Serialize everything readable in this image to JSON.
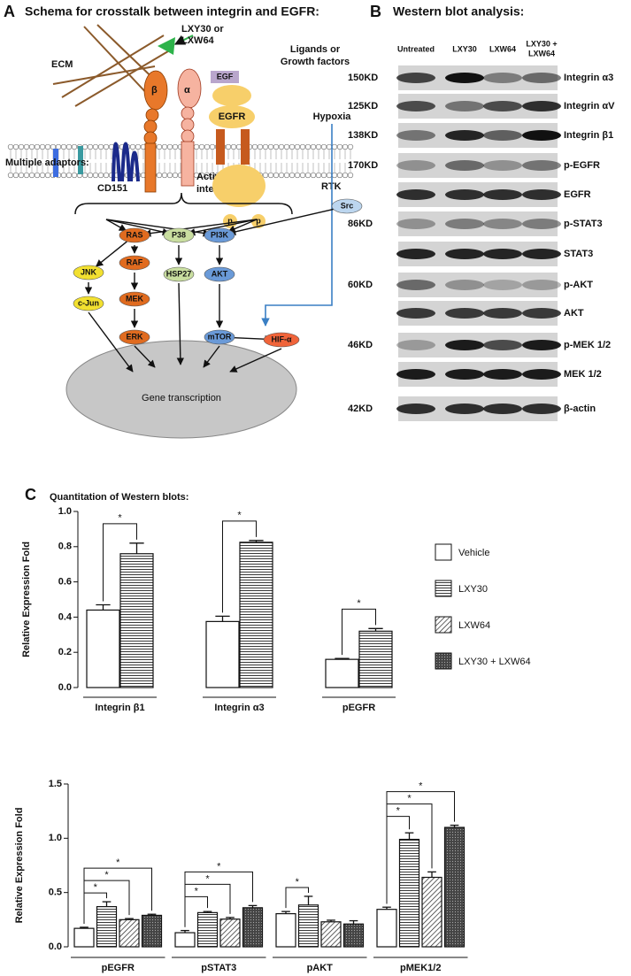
{
  "schema": {
    "letter": "A",
    "title": "Schema for crosstalk between integrin and EGFR:",
    "ecm": "ECM",
    "ligand_drug": [
      "LXY30 or",
      "LXW64"
    ],
    "ligands": [
      "Ligands or",
      "Growth factors"
    ],
    "egf": "EGF",
    "egfr": "EGFR",
    "beta": "β",
    "alpha": "α",
    "hypoxia": "Hypoxia",
    "adaptors": "Multiple adaptors:",
    "cd151": "CD151",
    "active_integrin": [
      "Active",
      "integrin"
    ],
    "rtk": "RTK",
    "phospho": [
      "p",
      "p"
    ],
    "nodes": [
      "Src",
      "RAS",
      "P38",
      "PI3K",
      "JNK",
      "RAF",
      "HSP27",
      "AKT",
      "MEK",
      "c-Jun",
      "ERK",
      "mTOR",
      "HIF-α"
    ],
    "nucleus": "Gene transcription"
  },
  "blot": {
    "letter": "B",
    "title": "Western blot analysis:",
    "columns": [
      "Untreated",
      "LXY30",
      "LXW64",
      [
        "LXY30 +",
        "LXW64"
      ]
    ],
    "rows": [
      {
        "kd": "150KD",
        "protein": "Integrin α3"
      },
      {
        "kd": "125KD",
        "protein": "Integrin αV"
      },
      {
        "kd": "138KD",
        "protein": "Integrin β1"
      },
      {
        "kd": "170KD",
        "protein": "p-EGFR"
      },
      {
        "kd": null,
        "protein": "EGFR"
      },
      {
        "kd": "86KD",
        "protein": "p-STAT3"
      },
      {
        "kd": null,
        "protein": "STAT3"
      },
      {
        "kd": "60KD",
        "protein": "p-AKT"
      },
      {
        "kd": null,
        "protein": "AKT"
      },
      {
        "kd": "46KD",
        "protein": "p-MEK 1/2"
      },
      {
        "kd": null,
        "protein": "MEK 1/2"
      },
      {
        "kd": "42KD",
        "protein": "β-actin"
      }
    ]
  },
  "quant": {
    "letter": "C",
    "title": "Quantitation of Western blots:"
  },
  "chart_data": [
    {
      "type": "bar",
      "y_label": "Relative Expression Fold",
      "categories": [
        "Integrin β1",
        "Integrin α3",
        "pEGFR"
      ],
      "series": [
        {
          "name": "Vehicle",
          "pattern": "none",
          "color": "#ffffff",
          "values": [
            0.44,
            0.375,
            0.16
          ],
          "errors": [
            0.03,
            0.03,
            0.005
          ]
        },
        {
          "name": "LXY30",
          "pattern": "horizontal",
          "color": "#ffffff",
          "values": [
            0.76,
            0.825,
            0.32
          ],
          "errors": [
            0.06,
            0.01,
            0.015
          ]
        }
      ],
      "ylim": [
        0,
        1
      ],
      "yticks": [
        {
          "value": 0,
          "label": "0.0"
        },
        0.2,
        0.4,
        0.6,
        0.8,
        {
          "value": 1,
          "label": "1.0"
        }
      ],
      "significance": [
        {
          "label": "*",
          "category": "Integrin β1",
          "compare": [
            "Vehicle",
            "LXY30"
          ]
        },
        {
          "label": "*",
          "category": "Integrin α3",
          "compare": [
            "Vehicle",
            "LXY30"
          ]
        },
        {
          "label": "*",
          "category": "pEGFR",
          "compare": [
            "Vehicle",
            "LXY30"
          ]
        }
      ]
    },
    {
      "type": "bar",
      "y_label": "Relative Expression Fold",
      "legend": true,
      "categories": [
        "pEGFR",
        "pSTAT3",
        "pAKT",
        "pMEK1/2"
      ],
      "series": [
        {
          "name": "Vehicle",
          "pattern": "none",
          "color": "#ffffff",
          "values": [
            0.17,
            0.13,
            0.305,
            0.345
          ],
          "errors": [
            0.01,
            0.02,
            0.02,
            0.02
          ]
        },
        {
          "name": "LXY30",
          "pattern": "horizontal",
          "color": "#ffffff",
          "values": [
            0.37,
            0.315,
            0.385,
            0.99
          ],
          "errors": [
            0.045,
            0.01,
            0.08,
            0.06
          ]
        },
        {
          "name": "LXW64",
          "pattern": "diagonal",
          "color": "#ffffff",
          "values": [
            0.25,
            0.255,
            0.23,
            0.64
          ],
          "errors": [
            0.01,
            0.015,
            0.015,
            0.05
          ]
        },
        {
          "name": "LXY30 + LXW64",
          "pattern": "dots",
          "color": "#444444",
          "values": [
            0.29,
            0.36,
            0.21,
            1.1
          ],
          "errors": [
            0.01,
            0.02,
            0.03,
            0.02
          ]
        }
      ],
      "ylim": [
        0,
        1.5
      ],
      "yticks": [
        {
          "value": 0,
          "label": "0.0"
        },
        0.5,
        {
          "value": 1,
          "label": "1.0"
        },
        1.5
      ],
      "significance": [
        {
          "label": "*",
          "category": "pEGFR",
          "compare": [
            "Vehicle",
            "LXY30"
          ]
        },
        {
          "label": "*",
          "category": "pEGFR",
          "compare": [
            "Vehicle",
            "LXW64"
          ]
        },
        {
          "label": "*",
          "category": "pEGFR",
          "compare": [
            "Vehicle",
            "LXY30 + LXW64"
          ]
        },
        {
          "label": "*",
          "category": "pSTAT3",
          "compare": [
            "Vehicle",
            "LXY30"
          ]
        },
        {
          "label": "*",
          "category": "pSTAT3",
          "compare": [
            "Vehicle",
            "LXW64"
          ]
        },
        {
          "label": "*",
          "category": "pSTAT3",
          "compare": [
            "Vehicle",
            "LXY30 + LXW64"
          ]
        },
        {
          "label": "*",
          "category": "pAKT",
          "compare": [
            "Vehicle",
            "LXY30"
          ]
        },
        {
          "label": "*",
          "category": "pMEK1/2",
          "compare": [
            "Vehicle",
            "LXY30"
          ]
        },
        {
          "label": "*",
          "category": "pMEK1/2",
          "compare": [
            "Vehicle",
            "LXW64"
          ]
        },
        {
          "label": "*",
          "category": "pMEK1/2",
          "compare": [
            "Vehicle",
            "LXY30 + LXW64"
          ]
        }
      ]
    }
  ]
}
